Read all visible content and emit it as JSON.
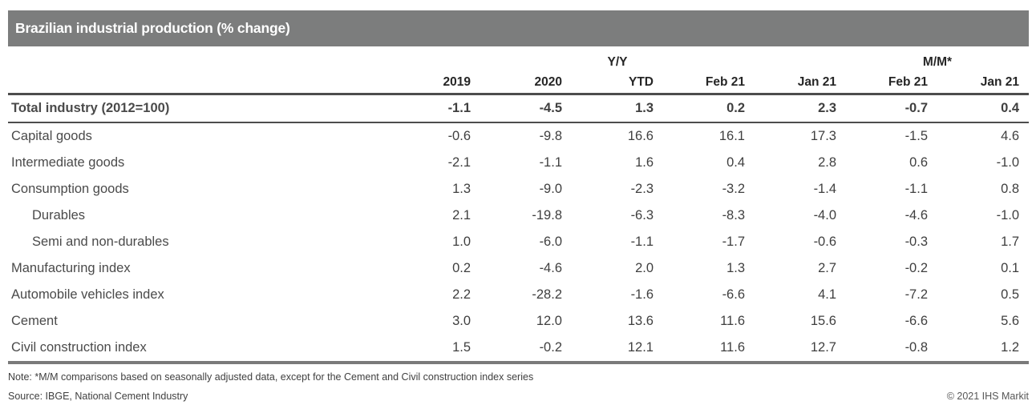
{
  "chart_data": {
    "type": "table",
    "title": "Brazilian industrial production (% change)",
    "group_headers": [
      {
        "label": "Y/Y",
        "over_columns": [
          "YTD"
        ]
      },
      {
        "label": "M/M*",
        "over_columns": [
          "Feb 21",
          "Jan 21"
        ]
      }
    ],
    "columns": [
      "2019",
      "2020",
      "YTD",
      "Feb 21",
      "Jan 21",
      "Feb 21",
      "Jan 21"
    ],
    "total_row": {
      "label": "Total industry (2012=100)",
      "values": [
        "-1.1",
        "-4.5",
        "1.3",
        "0.2",
        "2.3",
        "-0.7",
        "0.4"
      ]
    },
    "rows": [
      {
        "label": "Capital goods",
        "indent": false,
        "values": [
          "-0.6",
          "-9.8",
          "16.6",
          "16.1",
          "17.3",
          "-1.5",
          "4.6"
        ]
      },
      {
        "label": "Intermediate goods",
        "indent": false,
        "values": [
          "-2.1",
          "-1.1",
          "1.6",
          "0.4",
          "2.8",
          "0.6",
          "-1.0"
        ]
      },
      {
        "label": "Consumption goods",
        "indent": false,
        "values": [
          "1.3",
          "-9.0",
          "-2.3",
          "-3.2",
          "-1.4",
          "-1.1",
          "0.8"
        ]
      },
      {
        "label": "Durables",
        "indent": true,
        "values": [
          "2.1",
          "-19.8",
          "-6.3",
          "-8.3",
          "-4.0",
          "-4.6",
          "-1.0"
        ]
      },
      {
        "label": "Semi and non-durables",
        "indent": true,
        "values": [
          "1.0",
          "-6.0",
          "-1.1",
          "-1.7",
          "-0.6",
          "-0.3",
          "1.7"
        ]
      },
      {
        "label": "Manufacturing index",
        "indent": false,
        "values": [
          "0.2",
          "-4.6",
          "2.0",
          "1.3",
          "2.7",
          "-0.2",
          "0.1"
        ]
      },
      {
        "label": "Automobile vehicles index",
        "indent": false,
        "values": [
          "2.2",
          "-28.2",
          "-1.6",
          "-6.6",
          "4.1",
          "-7.2",
          "0.5"
        ]
      },
      {
        "label": "Cement",
        "indent": false,
        "values": [
          "3.0",
          "12.0",
          "13.6",
          "11.6",
          "15.6",
          "-6.6",
          "5.6"
        ]
      },
      {
        "label": "Civil construction index",
        "indent": false,
        "values": [
          "1.5",
          "-0.2",
          "12.1",
          "11.6",
          "12.7",
          "-0.8",
          "1.2"
        ]
      }
    ]
  },
  "footer": {
    "note": "Note: *M/M comparisons based on seasonally adjusted data, except for the Cement and Civil construction index series",
    "source": "Source: IBGE, National Cement Industry",
    "copyright": "© 2021 IHS Markit"
  },
  "colors": {
    "title_bar_bg": "#7c7d7d",
    "title_text": "#ffffff",
    "header_rule": "#4d4d4d",
    "bottom_rule": "#7a7a7a",
    "header_text": "#262626",
    "body_text": "#3f3f3f"
  }
}
